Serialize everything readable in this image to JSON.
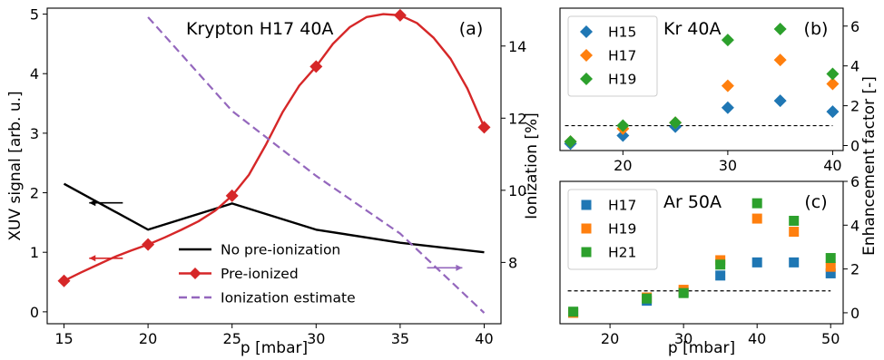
{
  "colors": {
    "black": "#000000",
    "red": "#d62728",
    "purple": "#9467bd",
    "blue": "#1f77b4",
    "orange": "#ff7f0e",
    "green": "#2ca02c"
  },
  "chart_data": [
    {
      "panel": "(a)",
      "type": "line",
      "title": "Krypton H17 40A",
      "xlabel": "p [mbar]",
      "ylabel": "XUV signal [arb. u.]",
      "y2label": "Ionization [%]",
      "xlim": [
        14,
        41
      ],
      "ylim": [
        -0.2,
        5.1
      ],
      "y2lim": [
        6.3,
        15.05
      ],
      "xticks": [
        15,
        20,
        25,
        30,
        35,
        40
      ],
      "yticks": [
        0,
        1,
        2,
        3,
        4,
        5
      ],
      "y2ticks": [
        8,
        10,
        12,
        14
      ],
      "legend_position": "lower-center",
      "series": [
        {
          "name": "No pre-ionization",
          "axis": "left",
          "color": "#000000",
          "style": "solid",
          "x": [
            15,
            20,
            25,
            30,
            35,
            40
          ],
          "y": [
            2.15,
            1.38,
            1.82,
            1.38,
            1.16,
            1.0
          ]
        },
        {
          "name": "Pre-ionized",
          "axis": "left",
          "color": "#d62728",
          "style": "solid",
          "x": [
            15,
            16,
            17,
            18,
            19,
            20,
            21,
            22,
            23,
            24,
            25,
            26,
            27,
            28,
            29,
            30,
            31,
            32,
            33,
            34,
            35,
            36,
            37,
            38,
            39,
            40
          ],
          "y": [
            0.52,
            0.66,
            0.79,
            0.92,
            1.03,
            1.13,
            1.25,
            1.38,
            1.52,
            1.7,
            1.95,
            2.3,
            2.8,
            3.35,
            3.8,
            4.12,
            4.5,
            4.78,
            4.95,
            5.0,
            4.98,
            4.85,
            4.6,
            4.25,
            3.75,
            3.1
          ],
          "markers_x": [
            15,
            20,
            25,
            30,
            35,
            40
          ],
          "markers_y": [
            0.52,
            1.13,
            1.95,
            4.12,
            4.98,
            3.1
          ]
        },
        {
          "name": "Ionization estimate",
          "axis": "right",
          "color": "#9467bd",
          "style": "dashed",
          "x": [
            20,
            25,
            30,
            35,
            40
          ],
          "y": [
            14.8,
            12.2,
            10.4,
            8.8,
            6.6
          ]
        }
      ],
      "annotations": [
        {
          "type": "arrow",
          "direction": "left",
          "color": "#000000",
          "x": [
            16.5,
            18.5
          ],
          "y": 1.83
        },
        {
          "type": "arrow",
          "direction": "left",
          "color": "#d62728",
          "x": [
            16.5,
            18.5
          ],
          "y": 0.9
        },
        {
          "type": "arrow",
          "direction": "right",
          "color": "#9467bd",
          "x": [
            36.6,
            38.7
          ],
          "y": 7.85
        }
      ]
    },
    {
      "panel": "(b)",
      "type": "scatter",
      "title": "Kr 40A",
      "xlabel": "",
      "ylabel": "Enhancement factor [-]",
      "xlim": [
        14,
        41
      ],
      "ylim": [
        -0.25,
        6.9
      ],
      "xticks": [
        20,
        30,
        40
      ],
      "yticks": [
        0,
        2,
        4,
        6
      ],
      "yaxis": "right",
      "legend_position": "top-left",
      "reference_line_y": 1,
      "categories": [
        15,
        20,
        25,
        30,
        35,
        40
      ],
      "series": [
        {
          "name": "H15",
          "color": "#1f77b4",
          "marker": "diamond",
          "values": [
            0.1,
            0.5,
            0.95,
            1.9,
            2.25,
            1.7
          ]
        },
        {
          "name": "H17",
          "color": "#ff7f0e",
          "marker": "diamond",
          "values": [
            0.2,
            0.85,
            1.15,
            3.0,
            4.3,
            3.1
          ]
        },
        {
          "name": "H19",
          "color": "#2ca02c",
          "marker": "diamond",
          "values": [
            0.2,
            1.0,
            1.15,
            5.3,
            5.85,
            3.6
          ]
        }
      ]
    },
    {
      "panel": "(c)",
      "type": "scatter",
      "title": "Ar 50A",
      "xlabel": "p [mbar]",
      "ylabel": "",
      "xlim": [
        13.2,
        51.7
      ],
      "ylim": [
        -0.5,
        6.0
      ],
      "xticks": [
        20,
        30,
        40,
        50
      ],
      "yticks": [
        0,
        2,
        4,
        6
      ],
      "yaxis": "right",
      "legend_position": "top-left",
      "reference_line_y": 1,
      "categories": [
        15,
        25,
        30,
        35,
        40,
        45,
        50
      ],
      "series": [
        {
          "name": "H17",
          "color": "#1f77b4",
          "marker": "square",
          "values": [
            0.0,
            0.55,
            0.95,
            1.7,
            2.3,
            2.3,
            1.8
          ]
        },
        {
          "name": "H19",
          "color": "#ff7f0e",
          "marker": "square",
          "values": [
            0.0,
            0.7,
            1.05,
            2.4,
            4.3,
            3.7,
            2.1
          ]
        },
        {
          "name": "H21",
          "color": "#2ca02c",
          "marker": "square",
          "values": [
            0.05,
            0.65,
            0.9,
            2.2,
            5.0,
            4.2,
            2.5
          ]
        }
      ]
    }
  ],
  "labels": {
    "a": {
      "title": "Krypton H17 40A",
      "panel": "(a)",
      "xlabel": "p [mbar]",
      "ylabel": "XUV signal [arb. u.]",
      "y2label": "Ionization [%]"
    },
    "b": {
      "title": "Kr 40A",
      "panel": "(b)"
    },
    "c": {
      "title": "Ar 50A",
      "panel": "(c)",
      "xlabel": "p [mbar]"
    },
    "shared": {
      "enh_ylabel": "Enhancement factor [-]"
    }
  }
}
